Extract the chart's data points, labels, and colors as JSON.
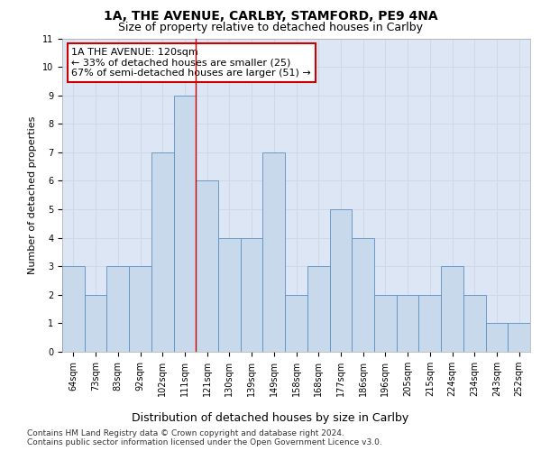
{
  "title1": "1A, THE AVENUE, CARLBY, STAMFORD, PE9 4NA",
  "title2": "Size of property relative to detached houses in Carlby",
  "xlabel": "Distribution of detached houses by size in Carlby",
  "ylabel": "Number of detached properties",
  "categories": [
    "64sqm",
    "73sqm",
    "83sqm",
    "92sqm",
    "102sqm",
    "111sqm",
    "121sqm",
    "130sqm",
    "139sqm",
    "149sqm",
    "158sqm",
    "168sqm",
    "177sqm",
    "186sqm",
    "196sqm",
    "205sqm",
    "215sqm",
    "224sqm",
    "234sqm",
    "243sqm",
    "252sqm"
  ],
  "values": [
    3,
    2,
    3,
    3,
    7,
    9,
    6,
    4,
    4,
    7,
    2,
    3,
    5,
    4,
    2,
    2,
    2,
    3,
    2,
    1,
    1
  ],
  "bar_color": "#c9d9ec",
  "bar_edge_color": "#5a8fc3",
  "vline_x": 6.0,
  "vline_color": "#cc0000",
  "annotation_text": "1A THE AVENUE: 120sqm\n← 33% of detached houses are smaller (25)\n67% of semi-detached houses are larger (51) →",
  "annotation_box_color": "#ffffff",
  "annotation_box_edge": "#cc0000",
  "ylim": [
    0,
    11
  ],
  "yticks": [
    0,
    1,
    2,
    3,
    4,
    5,
    6,
    7,
    8,
    9,
    10,
    11
  ],
  "grid_color": "#d0d8e8",
  "plot_bg_color": "#dce6f5",
  "footer": "Contains HM Land Registry data © Crown copyright and database right 2024.\nContains public sector information licensed under the Open Government Licence v3.0.",
  "title1_fontsize": 10,
  "title2_fontsize": 9,
  "xlabel_fontsize": 9,
  "ylabel_fontsize": 8,
  "tick_fontsize": 7,
  "annotation_fontsize": 8,
  "footer_fontsize": 6.5
}
